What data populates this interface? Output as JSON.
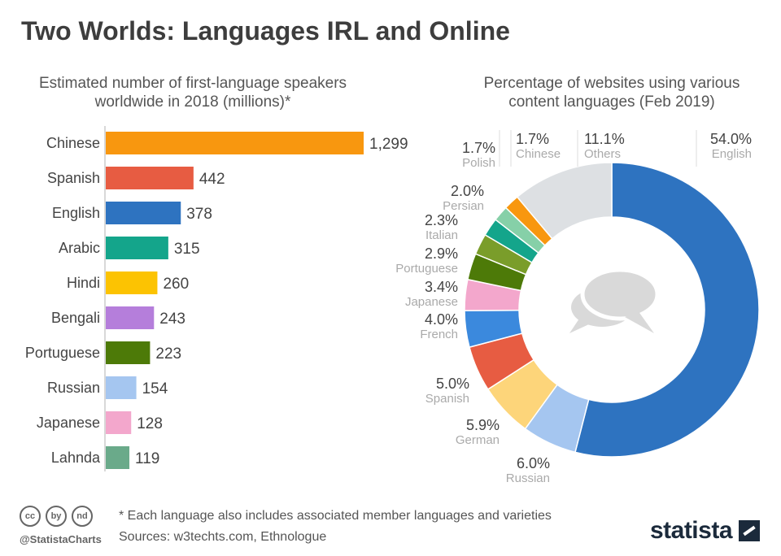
{
  "title": "Two Worlds: Languages IRL and Online",
  "colors": {
    "axis": "#cccccc",
    "value_text": "#444444",
    "pct_text": "#444444",
    "lang_text": "#aaaaaa",
    "leader": "#dddddd",
    "bubble": "#d9d9d9"
  },
  "chart_data": [
    {
      "type": "bar",
      "orientation": "horizontal",
      "title": "Estimated number of first-language speakers",
      "subtitle": "worldwide in 2018 (millions)*",
      "categories": [
        "Chinese",
        "Spanish",
        "English",
        "Arabic",
        "Hindi",
        "Bengali",
        "Portuguese",
        "Russian",
        "Japanese",
        "Lahnda"
      ],
      "values": [
        1299,
        442,
        378,
        315,
        260,
        243,
        223,
        154,
        128,
        119
      ],
      "value_labels": [
        "1,299",
        "442",
        "378",
        "315",
        "260",
        "243",
        "223",
        "154",
        "128",
        "119"
      ],
      "colors": [
        "#f8970f",
        "#e75c42",
        "#2e73c0",
        "#14a58b",
        "#fcc302",
        "#b57edb",
        "#4d7a08",
        "#a5c6f0",
        "#f3a7cc",
        "#6aaa8a"
      ],
      "xlim": [
        0,
        1299
      ]
    },
    {
      "type": "pie",
      "variant": "donut",
      "title": "Percentage of websites using various",
      "subtitle": "content languages (Feb 2019)",
      "slices": [
        {
          "label": "English",
          "value": 54.0,
          "value_label": "54.0%",
          "color": "#2e73c0"
        },
        {
          "label": "Russian",
          "value": 6.0,
          "value_label": "6.0%",
          "color": "#a5c6f0"
        },
        {
          "label": "German",
          "value": 5.9,
          "value_label": "5.9%",
          "color": "#fdd57a"
        },
        {
          "label": "Spanish",
          "value": 5.0,
          "value_label": "5.0%",
          "color": "#e75c42"
        },
        {
          "label": "French",
          "value": 4.0,
          "value_label": "4.0%",
          "color": "#3b89dd"
        },
        {
          "label": "Japanese",
          "value": 3.4,
          "value_label": "3.4%",
          "color": "#f3a7cc"
        },
        {
          "label": "Portuguese",
          "value": 2.9,
          "value_label": "2.9%",
          "color": "#4d7a08"
        },
        {
          "label": "Italian",
          "value": 2.3,
          "value_label": "2.3%",
          "color": "#7a9d2a"
        },
        {
          "label": "Persian",
          "value": 2.0,
          "value_label": "2.0%",
          "color": "#14a58b"
        },
        {
          "label": "Polish",
          "value": 1.7,
          "value_label": "1.7%",
          "color": "#86d0a8"
        },
        {
          "label": "Chinese",
          "value": 1.7,
          "value_label": "1.7%",
          "color": "#f8970f"
        },
        {
          "label": "Others",
          "value": 11.1,
          "value_label": "11.1%",
          "color": "#dde0e3"
        }
      ]
    }
  ],
  "footer": {
    "note": "* Each language also includes associated member languages and varieties",
    "sources": "Sources: w3techts.com, Ethnologue",
    "handle": "@StatistaCharts",
    "brand": "statista",
    "license_icons": [
      "cc",
      "by",
      "nd"
    ]
  }
}
